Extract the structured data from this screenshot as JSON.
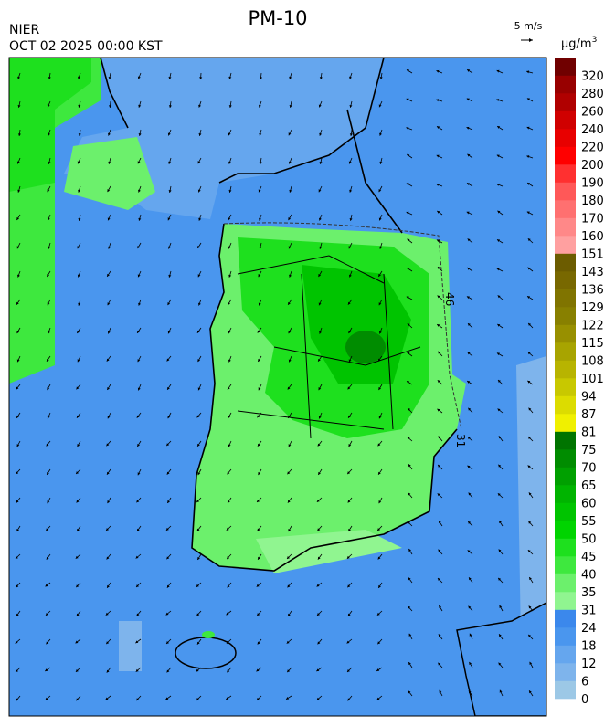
{
  "header": {
    "agency": "NIER",
    "datetime": "OCT 02 2025 00:00 KST",
    "title": "PM-10"
  },
  "wind_scale": {
    "label": "5 m/s"
  },
  "colorbar": {
    "unit": "μg/m",
    "unit_exponent": "3",
    "levels": [
      0,
      6,
      12,
      18,
      24,
      31,
      35,
      40,
      45,
      50,
      55,
      60,
      65,
      70,
      75,
      81,
      87,
      94,
      101,
      108,
      115,
      122,
      129,
      136,
      143,
      151,
      160,
      170,
      180,
      190,
      200,
      220,
      240,
      260,
      280,
      320
    ],
    "colors": [
      "#9cc8e6",
      "#7eb4ec",
      "#65a6ee",
      "#4a96ee",
      "#3b88ec",
      "#90f590",
      "#6cf06c",
      "#3ee83e",
      "#1ee01e",
      "#00d400",
      "#00c400",
      "#00b400",
      "#00a000",
      "#008c00",
      "#007400",
      "#f0f000",
      "#dcdc00",
      "#c8c800",
      "#b8b400",
      "#a8a400",
      "#989000",
      "#888000",
      "#807400",
      "#786800",
      "#6c5c00",
      "#ffa0a0",
      "#ff8888",
      "#ff7070",
      "#ff5858",
      "#ff3030",
      "#ff0000",
      "#e80000",
      "#d00000",
      "#b00000",
      "#980000",
      "#700000"
    ]
  },
  "map": {
    "contour_labels": [
      "46",
      "31"
    ]
  }
}
